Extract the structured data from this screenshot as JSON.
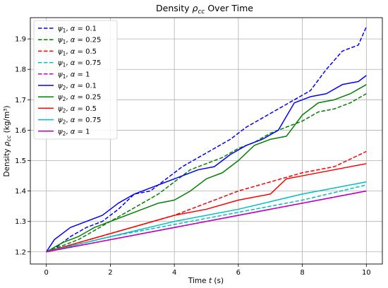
{
  "chart_data": {
    "type": "line",
    "title": "Density ρ_cc Over Time",
    "title_parts": {
      "main": "Density ",
      "sym": "ρ",
      "sub": "cc",
      "tail": " Over Time"
    },
    "xlabel": "Time t (s)",
    "xlabel_parts": {
      "main": "Time ",
      "sym": "t",
      "tail": " (s)"
    },
    "ylabel": "Density ρ_cc (kg/m³)",
    "ylabel_parts": {
      "main": "Density ",
      "sym": "ρ",
      "sub": "cc",
      "tail": " (kg/m³)"
    },
    "xlim": [
      -0.5,
      10.5
    ],
    "ylim": [
      1.16,
      1.97
    ],
    "xticks": [
      0,
      2,
      4,
      6,
      8,
      10
    ],
    "yticks": [
      1.2,
      1.3,
      1.4,
      1.5,
      1.6,
      1.7,
      1.8,
      1.9
    ],
    "grid": true,
    "legend_position": "top-left",
    "series": [
      {
        "name": "ψ₁, α = 0.1",
        "psi": "1",
        "alpha": "0.1",
        "color": "#0000ff",
        "dash": true,
        "x": [
          0,
          0.25,
          0.75,
          1.25,
          1.75,
          2.25,
          2.75,
          3.25,
          3.75,
          4.25,
          4.75,
          5.25,
          5.75,
          6.25,
          6.75,
          7.25,
          7.75,
          8.25,
          8.75,
          9.25,
          9.75,
          10.0
        ],
        "y": [
          1.2,
          1.21,
          1.25,
          1.28,
          1.3,
          1.34,
          1.39,
          1.4,
          1.44,
          1.48,
          1.51,
          1.54,
          1.57,
          1.61,
          1.64,
          1.67,
          1.7,
          1.73,
          1.8,
          1.86,
          1.88,
          1.94
        ]
      },
      {
        "name": "ψ₁, α = 0.25",
        "psi": "1",
        "alpha": "0.25",
        "color": "#008000",
        "dash": true,
        "x": [
          0,
          0.5,
          1.0,
          1.5,
          2.0,
          2.5,
          3.0,
          3.5,
          4.0,
          4.5,
          5.0,
          5.5,
          6.0,
          6.5,
          7.0,
          7.5,
          8.0,
          8.5,
          9.0,
          9.5,
          10.0
        ],
        "y": [
          1.2,
          1.22,
          1.24,
          1.27,
          1.3,
          1.33,
          1.36,
          1.39,
          1.43,
          1.47,
          1.49,
          1.51,
          1.54,
          1.56,
          1.59,
          1.61,
          1.63,
          1.66,
          1.67,
          1.69,
          1.72
        ]
      },
      {
        "name": "ψ₁, α = 0.5",
        "psi": "1",
        "alpha": "0.5",
        "color": "#ff0000",
        "dash": true,
        "x": [
          0,
          1,
          2,
          3,
          4,
          5,
          6,
          7,
          8,
          9,
          10
        ],
        "y": [
          1.2,
          1.23,
          1.26,
          1.29,
          1.32,
          1.36,
          1.4,
          1.43,
          1.46,
          1.48,
          1.53
        ]
      },
      {
        "name": "ψ₁, α = 0.75",
        "psi": "1",
        "alpha": "0.75",
        "color": "#00bfbf",
        "dash": true,
        "x": [
          0,
          2,
          4,
          6,
          8,
          10
        ],
        "y": [
          1.2,
          1.25,
          1.29,
          1.33,
          1.37,
          1.42
        ]
      },
      {
        "name": "ψ₁, α = 1",
        "psi": "1",
        "alpha": "1",
        "color": "#bf00bf",
        "dash": true,
        "x": [
          0,
          10
        ],
        "y": [
          1.2,
          1.4
        ]
      },
      {
        "name": "ψ₂, α = 0.1",
        "psi": "2",
        "alpha": "0.1",
        "color": "#0000ff",
        "dash": false,
        "x": [
          0,
          0.25,
          0.75,
          1.25,
          1.75,
          2.25,
          2.75,
          3.25,
          3.75,
          4.25,
          4.75,
          5.25,
          5.75,
          6.25,
          6.75,
          7.25,
          7.75,
          8.25,
          8.75,
          9.25,
          9.75,
          10.0
        ],
        "y": [
          1.2,
          1.24,
          1.28,
          1.3,
          1.32,
          1.36,
          1.39,
          1.41,
          1.43,
          1.45,
          1.47,
          1.48,
          1.52,
          1.55,
          1.57,
          1.6,
          1.69,
          1.71,
          1.72,
          1.75,
          1.76,
          1.78
        ]
      },
      {
        "name": "ψ₂, α = 0.25",
        "psi": "2",
        "alpha": "0.25",
        "color": "#008000",
        "dash": false,
        "x": [
          0,
          0.5,
          1.0,
          1.5,
          2.0,
          2.5,
          3.0,
          3.5,
          4.0,
          4.5,
          5.0,
          5.5,
          6.0,
          6.5,
          7.0,
          7.5,
          8.0,
          8.5,
          9.0,
          9.5,
          10.0
        ],
        "y": [
          1.2,
          1.23,
          1.25,
          1.28,
          1.3,
          1.32,
          1.34,
          1.36,
          1.37,
          1.4,
          1.44,
          1.46,
          1.5,
          1.55,
          1.57,
          1.58,
          1.65,
          1.69,
          1.7,
          1.72,
          1.75
        ]
      },
      {
        "name": "ψ₂, α = 0.5",
        "psi": "2",
        "alpha": "0.5",
        "color": "#ff0000",
        "dash": false,
        "x": [
          0,
          1,
          2,
          3,
          4,
          5,
          6,
          7,
          7.5,
          8,
          9,
          10
        ],
        "y": [
          1.2,
          1.23,
          1.26,
          1.29,
          1.32,
          1.34,
          1.37,
          1.39,
          1.44,
          1.45,
          1.47,
          1.49
        ]
      },
      {
        "name": "ψ₂, α = 0.75",
        "psi": "2",
        "alpha": "0.75",
        "color": "#00bfbf",
        "dash": false,
        "x": [
          0,
          2,
          4,
          6,
          8,
          10
        ],
        "y": [
          1.2,
          1.25,
          1.3,
          1.34,
          1.39,
          1.43
        ]
      },
      {
        "name": "ψ₂, α = 1",
        "psi": "2",
        "alpha": "1",
        "color": "#bf00bf",
        "dash": false,
        "x": [
          0,
          10
        ],
        "y": [
          1.2,
          1.4
        ]
      }
    ]
  }
}
